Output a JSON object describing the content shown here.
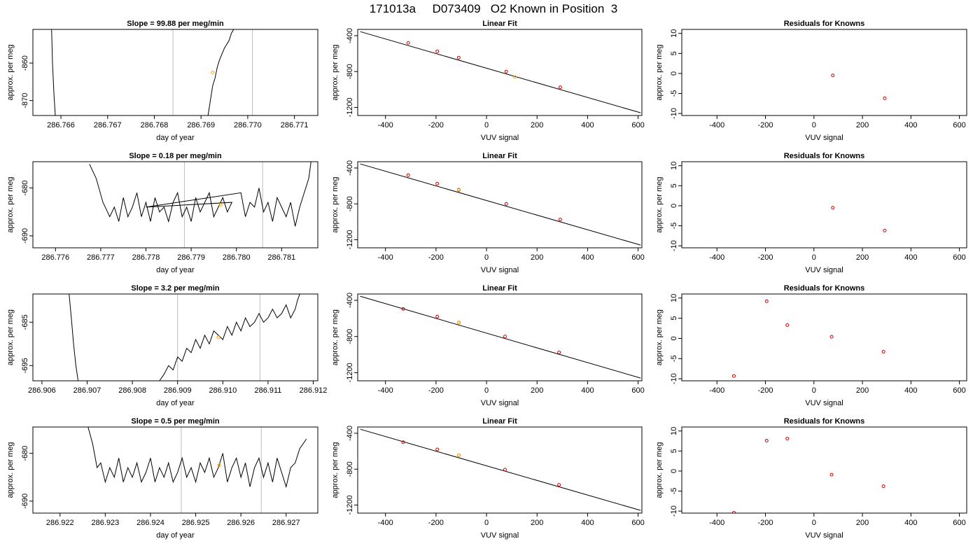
{
  "main_title": "171013a     D073409   O2 Known in Position  3",
  "colors": {
    "line": "#000000",
    "ref_line": "#bdbdbd",
    "known_point": "#cc0000",
    "sample_point": "#ffa500"
  },
  "chart_data": [
    {
      "type": "line",
      "row": 0,
      "col": 0,
      "title": "Slope =  99.88  per meg/min",
      "xlabel": "day of year",
      "ylabel": "approx. per meg",
      "xlim": [
        286.7654,
        286.7715
      ],
      "ylim": [
        -874,
        -851
      ],
      "xticks": [
        286.766,
        286.767,
        286.768,
        286.769,
        286.77,
        286.771
      ],
      "xtick_labels": [
        "286.766",
        "286.767",
        "286.768",
        "286.769",
        "286.770",
        "286.771"
      ],
      "yticks": [
        -860,
        -870
      ],
      "ytick_labels": [
        "-860",
        "-870"
      ],
      "vlines": [
        286.7684,
        286.7701
      ],
      "series": [
        {
          "x": [
            286.7658,
            286.76582,
            286.76585,
            286.76588
          ],
          "y": [
            -851,
            -860,
            -868,
            -874
          ]
        },
        {
          "x": [
            286.76915,
            286.7692,
            286.76925,
            286.7693,
            286.76935,
            286.7694,
            286.7695,
            286.7696,
            286.76965,
            286.7697
          ],
          "y": [
            -874,
            -870,
            -866,
            -864,
            -861,
            -859,
            -856,
            -854,
            -852,
            -851
          ]
        }
      ],
      "sample_point": {
        "x": 286.76925,
        "y": -862.5
      }
    },
    {
      "type": "scatter",
      "row": 0,
      "col": 1,
      "title": "Linear Fit",
      "xlabel": "VUV signal",
      "ylabel": "approx. per meg",
      "xlim": [
        -510,
        615
      ],
      "ylim": [
        -1290,
        -330
      ],
      "xticks": [
        -400,
        -200,
        0,
        200,
        400,
        600
      ],
      "xtick_labels": [
        "-400",
        "-200",
        "0",
        "200",
        "400",
        "600"
      ],
      "yticks": [
        -400,
        -800,
        -1200
      ],
      "ytick_labels": [
        "-400",
        "-800",
        "-1200"
      ],
      "fit_line": {
        "x": [
          -500,
          610
        ],
        "y": [
          -355,
          -1260
        ]
      },
      "knowns": {
        "x": [
          -310,
          -195,
          -110,
          78,
          292
        ],
        "y": [
          -480,
          -575,
          -645,
          -800,
          -975
        ]
      },
      "sample_point": {
        "x": 112,
        "y": -862
      }
    },
    {
      "type": "scatter",
      "row": 0,
      "col": 2,
      "title": "Residuals for Knowns",
      "xlabel": "VUV signal",
      "ylabel": "approx. per meg",
      "xlim": [
        -545,
        630
      ],
      "ylim": [
        -10.5,
        11
      ],
      "xticks": [
        -400,
        -200,
        0,
        200,
        400,
        600
      ],
      "xtick_labels": [
        "-400",
        "-200",
        "0",
        "200",
        "400",
        "600"
      ],
      "yticks": [
        10,
        5,
        0,
        -5,
        -10
      ],
      "ytick_labels": [
        "10",
        "5",
        "0",
        "-5",
        "-10"
      ],
      "knowns": {
        "x": [
          78,
          292
        ],
        "y": [
          -0.5,
          -6.2
        ]
      }
    },
    {
      "type": "line",
      "row": 1,
      "col": 0,
      "title": "Slope =  0.18  per meg/min",
      "xlabel": "day of year",
      "ylabel": "approx. per meg",
      "xlim": [
        286.7755,
        286.7818
      ],
      "ylim": [
        -692.5,
        -674.5
      ],
      "xticks": [
        286.776,
        286.777,
        286.778,
        286.779,
        286.78,
        286.781
      ],
      "xtick_labels": [
        "286.776",
        "286.777",
        "286.778",
        "286.779",
        "286.780",
        "286.781"
      ],
      "yticks": [
        -680,
        -690
      ],
      "ytick_labels": [
        "-680",
        "-690"
      ],
      "vlines": [
        286.77885,
        286.78058
      ],
      "series": [
        {
          "x": [
            286.77675,
            286.7769,
            286.77705,
            286.7772,
            286.7773,
            286.7774,
            286.7775,
            286.7776,
            286.7777,
            286.7778,
            286.7779,
            286.778,
            286.7781,
            286.7782,
            286.7783,
            286.7784,
            286.7785,
            286.7786,
            286.7787,
            286.7788,
            286.7789,
            286.779,
            286.7791,
            286.7792,
            286.7793,
            286.7794,
            286.7795,
            286.7796,
            286.7797,
            286.7798,
            286.7799,
            286.778,
            286.7801,
            286.7802,
            286.7803,
            286.7804,
            286.7805,
            286.7806,
            286.7807,
            286.7808,
            286.7809,
            286.781,
            286.7811,
            286.7812,
            286.7813,
            286.7814,
            286.7815,
            286.7816,
            286.78165
          ],
          "y": [
            -675,
            -678,
            -683,
            -686,
            -684,
            -687,
            -682,
            -686,
            -684,
            -681,
            -686,
            -683,
            -687,
            -682,
            -685,
            -684,
            -687,
            -683,
            -681,
            -686,
            -684,
            -687,
            -682,
            -685,
            -683,
            -681,
            -686,
            -684,
            -682,
            -685,
            -683,
            -684,
            -681,
            -686,
            -683,
            -684,
            -680,
            -685,
            -683,
            -687,
            -682,
            -684,
            -686,
            -683,
            -688,
            -684,
            -681,
            -678,
            -674.5
          ]
        }
      ],
      "sample_point": {
        "x": 286.77965,
        "y": -683.5
      }
    },
    {
      "type": "scatter",
      "row": 1,
      "col": 1,
      "title": "Linear Fit",
      "xlabel": "VUV signal",
      "ylabel": "approx. per meg",
      "xlim": [
        -510,
        615
      ],
      "ylim": [
        -1290,
        -330
      ],
      "xticks": [
        -400,
        -200,
        0,
        200,
        400,
        600
      ],
      "xtick_labels": [
        "-400",
        "-200",
        "0",
        "200",
        "400",
        "600"
      ],
      "yticks": [
        -400,
        -800,
        -1200
      ],
      "ytick_labels": [
        "-400",
        "-800",
        "-1200"
      ],
      "fit_line": {
        "x": [
          -500,
          610
        ],
        "y": [
          -355,
          -1260
        ]
      },
      "knowns": {
        "x": [
          -310,
          -195,
          -110,
          78,
          292
        ],
        "y": [
          -480,
          -575,
          -645,
          -800,
          -975
        ]
      },
      "sample_point": {
        "x": -110,
        "y": -640
      }
    },
    {
      "type": "scatter",
      "row": 1,
      "col": 2,
      "title": "Residuals for Knowns",
      "xlabel": "VUV signal",
      "ylabel": "approx. per meg",
      "xlim": [
        -545,
        630
      ],
      "ylim": [
        -10.5,
        11
      ],
      "xticks": [
        -400,
        -200,
        0,
        200,
        400,
        600
      ],
      "xtick_labels": [
        "-400",
        "-200",
        "0",
        "200",
        "400",
        "600"
      ],
      "yticks": [
        10,
        5,
        0,
        -5,
        -10
      ],
      "ytick_labels": [
        "10",
        "5",
        "0",
        "-5",
        "-10"
      ],
      "knowns": {
        "x": [
          78,
          292
        ],
        "y": [
          -0.5,
          -6.2
        ]
      }
    },
    {
      "type": "line",
      "row": 2,
      "col": 0,
      "title": "Slope =  3.2  per meg/min",
      "xlabel": "day of year",
      "ylabel": "approx. per meg",
      "xlim": [
        286.9058,
        286.9121
      ],
      "ylim": [
        -698.5,
        -678.5
      ],
      "xticks": [
        286.906,
        286.907,
        286.908,
        286.909,
        286.91,
        286.911,
        286.912
      ],
      "xtick_labels": [
        "286.906",
        "286.907",
        "286.908",
        "286.909",
        "286.910",
        "286.911",
        "286.912"
      ],
      "yticks": [
        -685,
        -695
      ],
      "ytick_labels": [
        "-685",
        "-695"
      ],
      "vlines": [
        286.909,
        286.91082
      ],
      "series": [
        {
          "x": [
            286.9066,
            286.90665,
            286.9067,
            286.90675,
            286.9068
          ],
          "y": [
            -678.5,
            -684,
            -690,
            -695,
            -698.5
          ]
        },
        {
          "x": [
            286.9086,
            286.9087,
            286.9088,
            286.9089,
            286.909,
            286.9091,
            286.9092,
            286.9093,
            286.9094,
            286.9095,
            286.9096,
            286.9097,
            286.9098,
            286.9099,
            286.91,
            286.9101,
            286.9102,
            286.9103,
            286.9104,
            286.9105,
            286.9106,
            286.9107,
            286.9108,
            286.9109,
            286.911,
            286.9111,
            286.9112,
            286.9113,
            286.9114,
            286.9115,
            286.9116,
            286.91165,
            286.9117
          ],
          "y": [
            -698.5,
            -697,
            -695,
            -696,
            -693,
            -694,
            -691,
            -692,
            -689,
            -691,
            -688,
            -690,
            -687,
            -688,
            -689,
            -686,
            -688,
            -685,
            -687,
            -684,
            -686,
            -685,
            -683,
            -685,
            -684,
            -682,
            -684,
            -683,
            -681,
            -684,
            -682,
            -680,
            -678.5
          ]
        }
      ],
      "sample_point": {
        "x": 286.9099,
        "y": -688.5
      }
    },
    {
      "type": "scatter",
      "row": 2,
      "col": 1,
      "title": "Linear Fit",
      "xlabel": "VUV signal",
      "ylabel": "approx. per meg",
      "xlim": [
        -510,
        615
      ],
      "ylim": [
        -1290,
        -330
      ],
      "xticks": [
        -400,
        -200,
        0,
        200,
        400,
        600
      ],
      "xtick_labels": [
        "-400",
        "-200",
        "0",
        "200",
        "400",
        "600"
      ],
      "yticks": [
        -400,
        -800,
        -1200
      ],
      "ytick_labels": [
        "-400",
        "-800",
        "-1200"
      ],
      "fit_line": {
        "x": [
          -500,
          610
        ],
        "y": [
          -355,
          -1260
        ]
      },
      "knowns": {
        "x": [
          -330,
          -195,
          -110,
          73,
          287
        ],
        "y": [
          -495,
          -580,
          -645,
          -800,
          -975
        ]
      },
      "sample_point": {
        "x": -110,
        "y": -645
      }
    },
    {
      "type": "scatter",
      "row": 2,
      "col": 2,
      "title": "Residuals for Knowns",
      "xlabel": "VUV signal",
      "ylabel": "approx. per meg",
      "xlim": [
        -545,
        630
      ],
      "ylim": [
        -10.5,
        11
      ],
      "xticks": [
        -400,
        -200,
        0,
        200,
        400,
        600
      ],
      "xtick_labels": [
        "-400",
        "-200",
        "0",
        "200",
        "400",
        "600"
      ],
      "yticks": [
        10,
        5,
        0,
        -5,
        -10
      ],
      "ytick_labels": [
        "10",
        "5",
        "0",
        "-5",
        "-10"
      ],
      "knowns": {
        "x": [
          -330,
          -195,
          -110,
          73,
          287
        ],
        "y": [
          -9.3,
          9.2,
          3.3,
          0.4,
          -3.3
        ]
      }
    },
    {
      "type": "line",
      "row": 3,
      "col": 0,
      "title": "Slope =  0.5  per meg/min",
      "xlabel": "day of year",
      "ylabel": "approx. per meg",
      "xlim": [
        286.9214,
        286.9277
      ],
      "ylim": [
        -692.5,
        -674.5
      ],
      "xticks": [
        286.922,
        286.923,
        286.924,
        286.925,
        286.926,
        286.927
      ],
      "xtick_labels": [
        "286.922",
        "286.923",
        "286.924",
        "286.925",
        "286.926",
        "286.927"
      ],
      "yticks": [
        -680,
        -690
      ],
      "ytick_labels": [
        "-680",
        "-690"
      ],
      "vlines": [
        286.92468,
        286.92645
      ],
      "series": [
        {
          "x": [
            286.92262,
            286.92272,
            286.92282,
            286.9229,
            286.923,
            286.9231,
            286.9232,
            286.9233,
            286.9234,
            286.9235,
            286.9236,
            286.9237,
            286.9238,
            286.9239,
            286.924,
            286.9241,
            286.9242,
            286.9243,
            286.9244,
            286.9245,
            286.9246,
            286.9247,
            286.9248,
            286.9249,
            286.925,
            286.9251,
            286.9252,
            286.9253,
            286.9254,
            286.9255,
            286.9256,
            286.9257,
            286.9258,
            286.9259,
            286.926,
            286.9261,
            286.9262,
            286.9263,
            286.9264,
            286.9265,
            286.9266,
            286.9267,
            286.9268,
            286.9269,
            286.927,
            286.9271,
            286.9272,
            286.9273,
            286.92745
          ],
          "y": [
            -674.5,
            -678,
            -683,
            -682,
            -686,
            -683,
            -685,
            -681,
            -686,
            -683,
            -685,
            -682,
            -686,
            -684,
            -681,
            -686,
            -683,
            -685,
            -682,
            -686,
            -684,
            -681,
            -685,
            -683,
            -686,
            -682,
            -684,
            -681,
            -685,
            -683,
            -680,
            -686,
            -683,
            -681,
            -685,
            -682,
            -687,
            -683,
            -681,
            -685,
            -682,
            -686,
            -681,
            -684,
            -687,
            -683,
            -682,
            -679,
            -677
          ]
        }
      ],
      "sample_point": {
        "x": 286.92552,
        "y": -682.5
      }
    },
    {
      "type": "scatter",
      "row": 3,
      "col": 1,
      "title": "Linear Fit",
      "xlabel": "VUV signal",
      "ylabel": "approx. per meg",
      "xlim": [
        -510,
        615
      ],
      "ylim": [
        -1290,
        -330
      ],
      "xticks": [
        -400,
        -200,
        0,
        200,
        400,
        600
      ],
      "xtick_labels": [
        "-400",
        "-200",
        "0",
        "200",
        "400",
        "600"
      ],
      "yticks": [
        -400,
        -800,
        -1200
      ],
      "ytick_labels": [
        "-400",
        "-800",
        "-1200"
      ],
      "fit_line": {
        "x": [
          -500,
          610
        ],
        "y": [
          -355,
          -1260
        ]
      },
      "knowns": {
        "x": [
          -330,
          -195,
          -110,
          73,
          287
        ],
        "y": [
          -500,
          -580,
          -645,
          -805,
          -975
        ]
      },
      "sample_point": {
        "x": -110,
        "y": -645
      }
    },
    {
      "type": "scatter",
      "row": 3,
      "col": 2,
      "title": "Residuals for Knowns",
      "xlabel": "VUV signal",
      "ylabel": "approx. per meg",
      "xlim": [
        -545,
        630
      ],
      "ylim": [
        -10.5,
        11
      ],
      "xticks": [
        -400,
        -200,
        0,
        200,
        400,
        600
      ],
      "xtick_labels": [
        "-400",
        "-200",
        "0",
        "200",
        "400",
        "600"
      ],
      "yticks": [
        10,
        5,
        0,
        -5,
        -10
      ],
      "ytick_labels": [
        "10",
        "5",
        "0",
        "-5",
        "-10"
      ],
      "knowns": {
        "x": [
          -330,
          -195,
          -110,
          73,
          287
        ],
        "y": [
          -10.4,
          7.6,
          8.1,
          -0.9,
          -3.8
        ]
      }
    }
  ]
}
